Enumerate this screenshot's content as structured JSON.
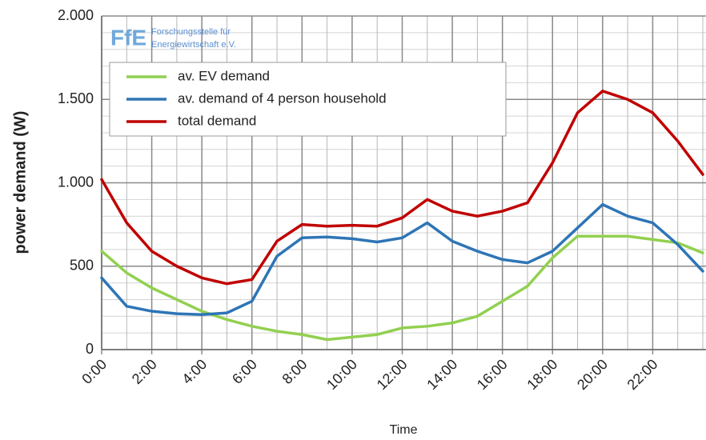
{
  "chart_data": {
    "type": "line",
    "y_label": "power demand (W)",
    "x_label": "Time",
    "logo": {
      "mark": "FfE",
      "line1": "Forschungsstelle für",
      "line2": "Energiewirtschaft e.V."
    },
    "x": [
      0,
      1,
      2,
      3,
      4,
      5,
      6,
      7,
      8,
      9,
      10,
      11,
      12,
      13,
      14,
      15,
      16,
      17,
      18,
      19,
      20,
      21,
      22,
      23,
      24
    ],
    "series": [
      {
        "name": "av. EV demand",
        "color": "#92d050",
        "values": [
          590,
          460,
          370,
          300,
          230,
          180,
          140,
          110,
          90,
          60,
          75,
          90,
          130,
          140,
          160,
          200,
          290,
          380,
          550,
          680,
          680,
          680,
          660,
          640,
          580
        ]
      },
      {
        "name": "av. demand of 4 person household",
        "color": "#2e75b6",
        "values": [
          430,
          260,
          230,
          215,
          210,
          220,
          290,
          560,
          670,
          675,
          665,
          645,
          670,
          760,
          650,
          590,
          540,
          520,
          590,
          730,
          870,
          800,
          760,
          630,
          470
        ]
      },
      {
        "name": "total demand",
        "color": "#c00000",
        "values": [
          1020,
          760,
          590,
          500,
          430,
          395,
          420,
          650,
          750,
          740,
          745,
          740,
          790,
          900,
          830,
          800,
          830,
          880,
          1120,
          1420,
          1550,
          1500,
          1420,
          1250,
          1050
        ]
      }
    ],
    "xlim": [
      0,
      24
    ],
    "xticks": [
      {
        "value": 0,
        "label": "0:00"
      },
      {
        "value": 2,
        "label": "2:00"
      },
      {
        "value": 4,
        "label": "4:00"
      },
      {
        "value": 6,
        "label": "6:00"
      },
      {
        "value": 8,
        "label": "8:00"
      },
      {
        "value": 10,
        "label": "10:00"
      },
      {
        "value": 12,
        "label": "12:00"
      },
      {
        "value": 14,
        "label": "14:00"
      },
      {
        "value": 16,
        "label": "16:00"
      },
      {
        "value": 18,
        "label": "18:00"
      },
      {
        "value": 20,
        "label": "20:00"
      },
      {
        "value": 22,
        "label": "22:00"
      }
    ],
    "ylim": [
      0,
      2000
    ],
    "yticks": [
      0,
      500,
      {
        "value": 1000,
        "label": "1.000"
      },
      {
        "value": 1500,
        "label": "1.500"
      },
      {
        "value": 2000,
        "label": "2.000"
      }
    ],
    "grid": true,
    "x_minor_step": 1,
    "y_minor_step": 100
  }
}
